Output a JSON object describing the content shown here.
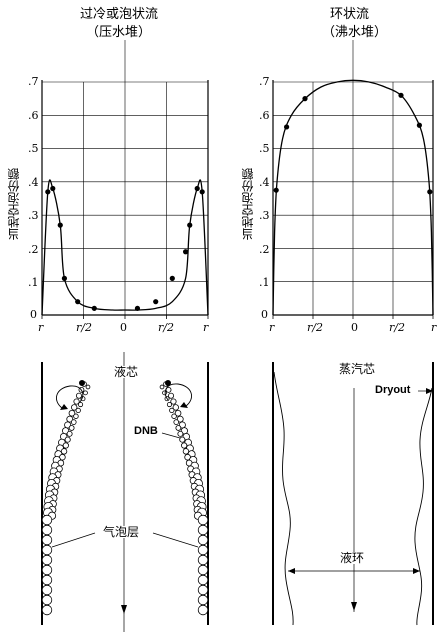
{
  "charts": [
    {
      "title": "过冷或泡状流",
      "subtitle": "（压水堆）",
      "ylabel": "当地空泡份额",
      "yticks": [
        ".7",
        ".6",
        ".5",
        ".4",
        ".3",
        ".2",
        ".1",
        "0"
      ],
      "xticks": [
        "r",
        "r/2",
        "0",
        "r/2",
        "r"
      ]
    },
    {
      "title": "环状流",
      "subtitle": "（沸水堆）",
      "ylabel": "当地空泡份额",
      "yticks": [
        ".7",
        ".6",
        ".5",
        ".4",
        ".3",
        ".2",
        ".1",
        "0"
      ],
      "xticks": [
        "r",
        "r/2",
        "0",
        "r/2",
        "r"
      ]
    }
  ],
  "chart_data": [
    {
      "type": "line",
      "title": "过冷或泡状流",
      "subtitle": "（压水堆）",
      "xlabel": "",
      "ylabel": "当地空泡份额",
      "xlim": [
        -1,
        1
      ],
      "ylim": [
        0,
        0.7
      ],
      "grid": true,
      "x": [
        -1.0,
        -0.93,
        -0.87,
        -0.78,
        -0.73,
        -0.57,
        -0.37,
        -0.15,
        0.0,
        0.15,
        0.37,
        0.57,
        0.73,
        0.78,
        0.87,
        0.93,
        1.0
      ],
      "y": [
        0.0,
        0.37,
        0.38,
        0.27,
        0.11,
        0.04,
        0.02,
        0.015,
        0.015,
        0.015,
        0.02,
        0.04,
        0.11,
        0.27,
        0.38,
        0.37,
        0.0
      ],
      "markers_x": [
        -0.93,
        -0.87,
        -0.78,
        -0.73,
        -0.57,
        -0.37,
        0.15,
        0.37,
        0.57,
        0.73,
        0.78,
        0.87,
        0.93
      ],
      "markers_y": [
        0.37,
        0.38,
        0.27,
        0.11,
        0.04,
        0.02,
        0.02,
        0.04,
        0.11,
        0.19,
        0.27,
        0.38,
        0.37
      ]
    },
    {
      "type": "line",
      "title": "环状流",
      "subtitle": "（沸水堆）",
      "xlabel": "",
      "ylabel": "当地空泡份额",
      "xlim": [
        -1,
        1
      ],
      "ylim": [
        0,
        0.7
      ],
      "grid": true,
      "x": [
        -1.0,
        -0.98,
        -0.95,
        -0.88,
        -0.77,
        -0.6,
        -0.4,
        -0.2,
        0.0,
        0.2,
        0.4,
        0.6,
        0.77,
        0.88,
        0.95,
        0.98,
        1.0
      ],
      "y": [
        0.0,
        0.25,
        0.4,
        0.53,
        0.6,
        0.65,
        0.685,
        0.7,
        0.705,
        0.7,
        0.685,
        0.66,
        0.6,
        0.53,
        0.4,
        0.25,
        0.0
      ],
      "markers_x": [
        -0.96,
        -0.83,
        -0.6,
        0.6,
        0.83,
        0.96
      ],
      "markers_y": [
        0.375,
        0.565,
        0.65,
        0.66,
        0.57,
        0.37
      ]
    }
  ],
  "bottom": {
    "liquid_core": "液芯",
    "dnb": "DNB",
    "bubble_layer": "气泡层",
    "vapor_core": "蒸汽芯",
    "dryout": "Dryout",
    "liquid_ring": "液环"
  }
}
